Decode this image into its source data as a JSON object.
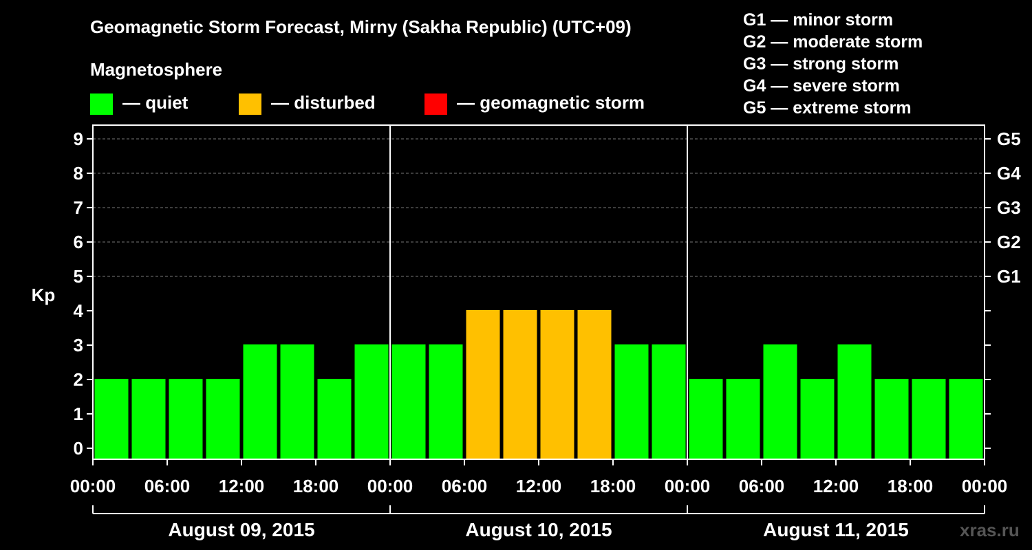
{
  "title": "Geomagnetic Storm Forecast, Mirny (Sakha Republic) (UTC+09)",
  "subtitle": "Magnetosphere",
  "legend": [
    {
      "label": "— quiet",
      "color": "#00ff00"
    },
    {
      "label": "— disturbed",
      "color": "#ffc000"
    },
    {
      "label": "— geomagnetic storm",
      "color": "#ff0000"
    }
  ],
  "g_scale": [
    "G1 — minor storm",
    "G2 — moderate storm",
    "G3 — strong storm",
    "G4 — severe storm",
    "G5 — extreme storm"
  ],
  "watermark": "xras.ru",
  "chart_data": {
    "type": "bar",
    "ylabel": "Kp",
    "ylim": [
      0,
      9
    ],
    "yticks": [
      "0",
      "1",
      "2",
      "3",
      "4",
      "5",
      "6",
      "7",
      "8",
      "9"
    ],
    "right_ticks": [
      {
        "value": 5,
        "label": "G1"
      },
      {
        "value": 6,
        "label": "G2"
      },
      {
        "value": 7,
        "label": "G3"
      },
      {
        "value": 8,
        "label": "G4"
      },
      {
        "value": 9,
        "label": "G5"
      }
    ],
    "xticks": [
      "00:00",
      "06:00",
      "12:00",
      "18:00",
      "00:00",
      "06:00",
      "12:00",
      "18:00",
      "00:00",
      "06:00",
      "12:00",
      "18:00",
      "00:00"
    ],
    "days": [
      "August 09, 2015",
      "August 10, 2015",
      "August 11, 2015"
    ],
    "values": [
      2,
      2,
      2,
      2,
      3,
      3,
      2,
      3,
      3,
      3,
      4,
      4,
      4,
      4,
      3,
      3,
      2,
      2,
      3,
      2,
      3,
      2,
      2,
      2
    ],
    "colors": {
      "quiet": "#00ff00",
      "disturbed": "#ffc000",
      "storm": "#ff0000"
    },
    "grid": true
  }
}
